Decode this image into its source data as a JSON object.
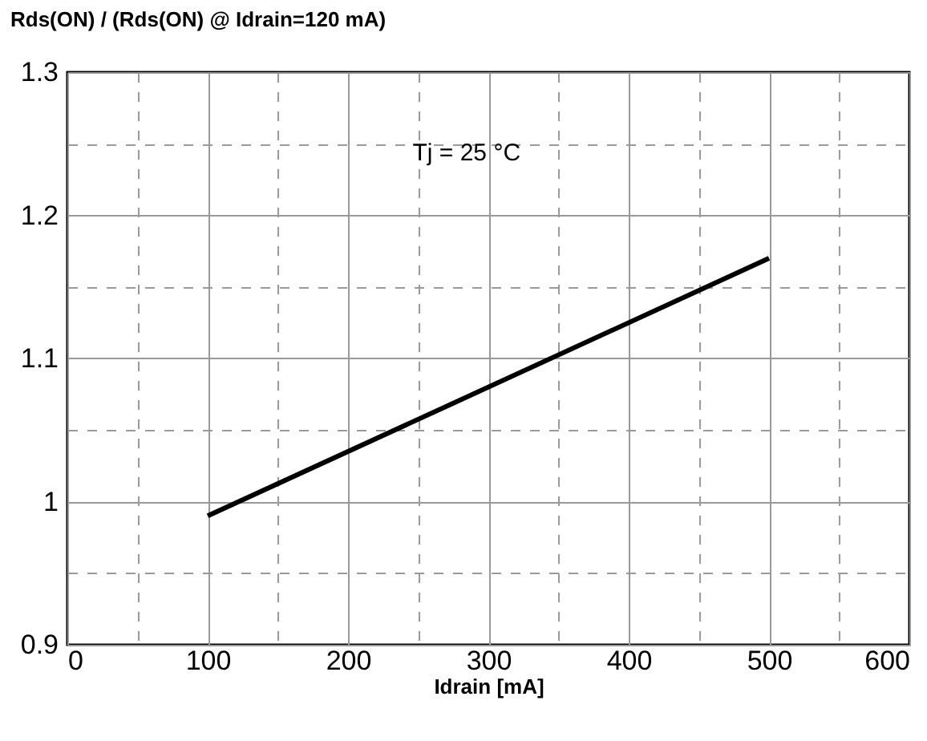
{
  "chart_data": {
    "type": "line",
    "ylabel": "Rds(ON) / (Rds(ON) @ Idrain=120 mA)",
    "xlabel": "Idrain [mA]",
    "annotations": [
      "Tj = 25 °C"
    ],
    "x": [
      100,
      500
    ],
    "series": [
      {
        "color": "#000000",
        "values": [
          0.99,
          1.17
        ]
      }
    ],
    "xlim": [
      0,
      600
    ],
    "ylim": [
      0.9,
      1.3
    ],
    "xticks": [
      0,
      {
        "value": 50,
        "label": null
      },
      100,
      {
        "value": 150,
        "label": null
      },
      200,
      {
        "value": 250,
        "label": null
      },
      300,
      {
        "value": 350,
        "label": null
      },
      400,
      {
        "value": 450,
        "label": null
      },
      500,
      {
        "value": 550,
        "label": null
      },
      600
    ],
    "yticks": [
      0.9,
      {
        "value": 0.95,
        "label": null
      },
      1,
      {
        "value": 1.05,
        "label": null
      },
      1.1,
      {
        "value": 1.15,
        "label": null
      },
      1.2,
      {
        "value": 1.25,
        "label": null
      },
      1.3
    ],
    "grid": true,
    "marker": "none",
    "line_style": "solid"
  }
}
